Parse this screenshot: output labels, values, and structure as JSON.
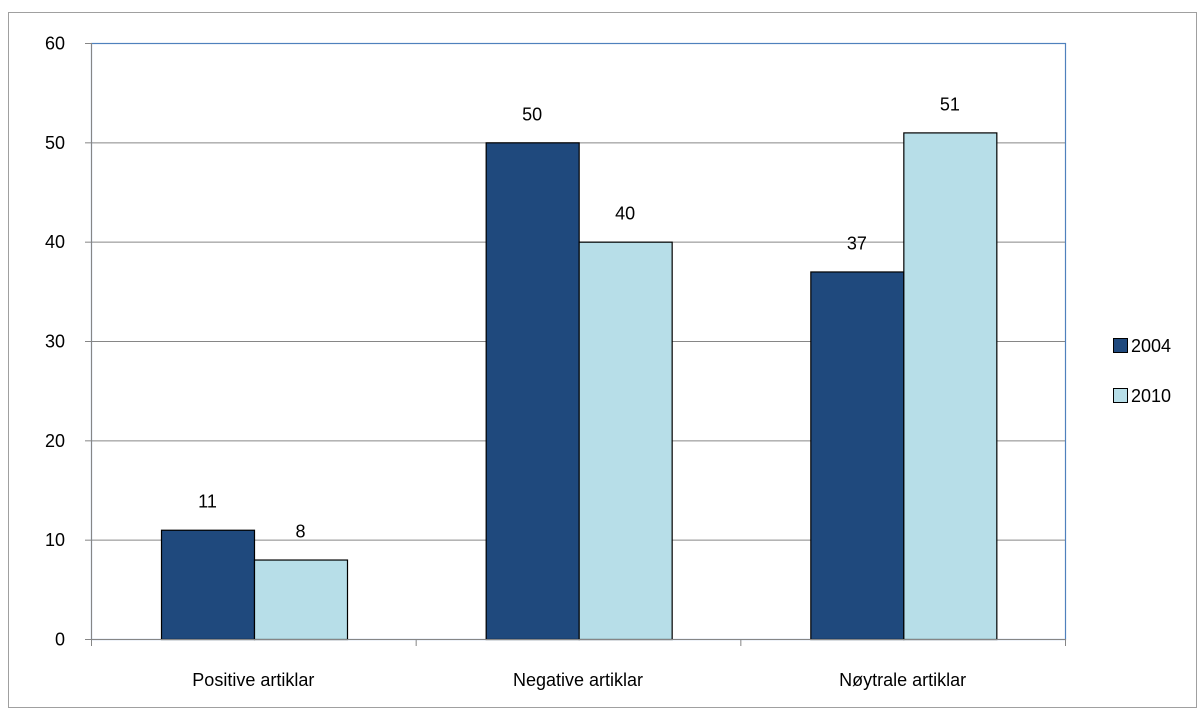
{
  "chart_data": {
    "type": "bar",
    "title": "",
    "xlabel": "",
    "ylabel": "",
    "categories": [
      "Positive artiklar",
      "Negative artiklar",
      "Nøytrale artiklar"
    ],
    "series": [
      {
        "name": "2004",
        "values": [
          11,
          50,
          37
        ],
        "color": "#1F497D"
      },
      {
        "name": "2010",
        "values": [
          8,
          40,
          51
        ],
        "color": "#B7DEE8"
      }
    ],
    "ylim": [
      0,
      60
    ],
    "yticks": [
      0,
      10,
      20,
      30,
      40,
      50,
      60
    ],
    "grid": true,
    "data_labels": true,
    "legend": "right"
  }
}
